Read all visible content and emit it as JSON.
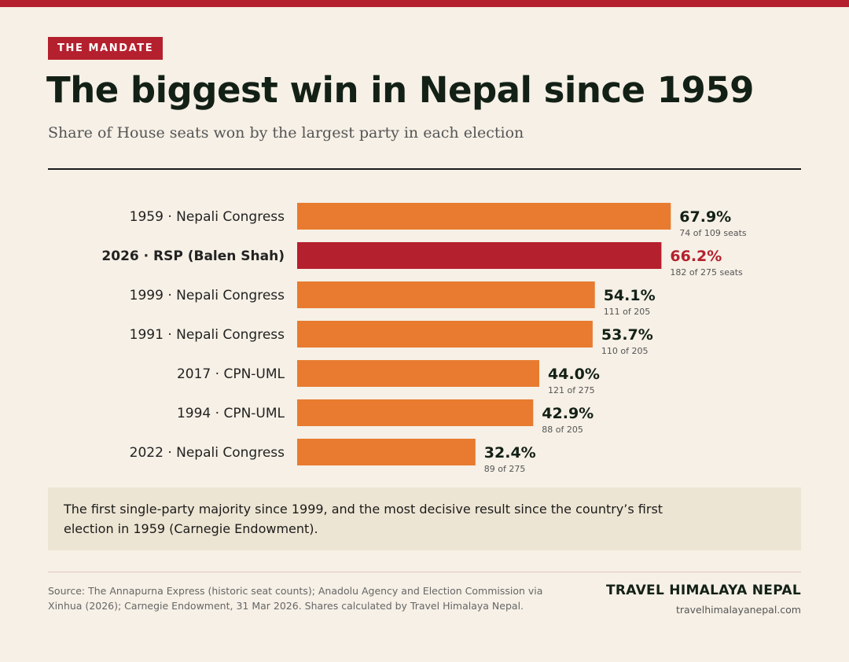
{
  "header": {
    "kicker": "THE MANDATE",
    "title": "The biggest win in Nepal since 1959",
    "subtitle": "Share of House seats won by the largest party in each election"
  },
  "colors": {
    "accent": "#b5202e",
    "bar": "#e87b2f",
    "highlight_bar": "#b5202e",
    "background": "#f6f0e6"
  },
  "chart_data": {
    "type": "bar",
    "orientation": "horizontal",
    "unit": "%",
    "xlim": [
      0,
      100
    ],
    "grid": false,
    "categories": [
      "1959 · Nepali Congress",
      "2026 · RSP (Balen Shah)",
      "1999 · Nepali Congress",
      "1991 · Nepali Congress",
      "2017 · CPN-UML",
      "1994 · CPN-UML",
      "2022 · Nepali Congress"
    ],
    "values": [
      67.9,
      66.2,
      54.1,
      53.7,
      44.0,
      42.9,
      32.4
    ],
    "value_labels": [
      "67.9%",
      "66.2%",
      "54.1%",
      "53.7%",
      "44.0%",
      "42.9%",
      "32.4%"
    ],
    "seat_labels": [
      "74 of 109 seats",
      "182 of 275 seats",
      "111 of 205",
      "110 of 205",
      "121 of 275",
      "88 of 205",
      "89 of 275"
    ],
    "highlight_index": 1
  },
  "note": {
    "text": "The first single-party majority since 1999, and the most decisive result since the country’s first election in 1959 (Carnegie Endowment)."
  },
  "footer": {
    "source": "Source: The Annapurna Express (historic seat counts); Anadolu Agency and Election Commission via Xinhua (2026); Carnegie Endowment, 31 Mar 2026. Shares calculated by Travel Himalaya Nepal.",
    "brand": "TRAVEL HIMALAYA NEPAL",
    "url": "travelhimalayanepal.com"
  }
}
